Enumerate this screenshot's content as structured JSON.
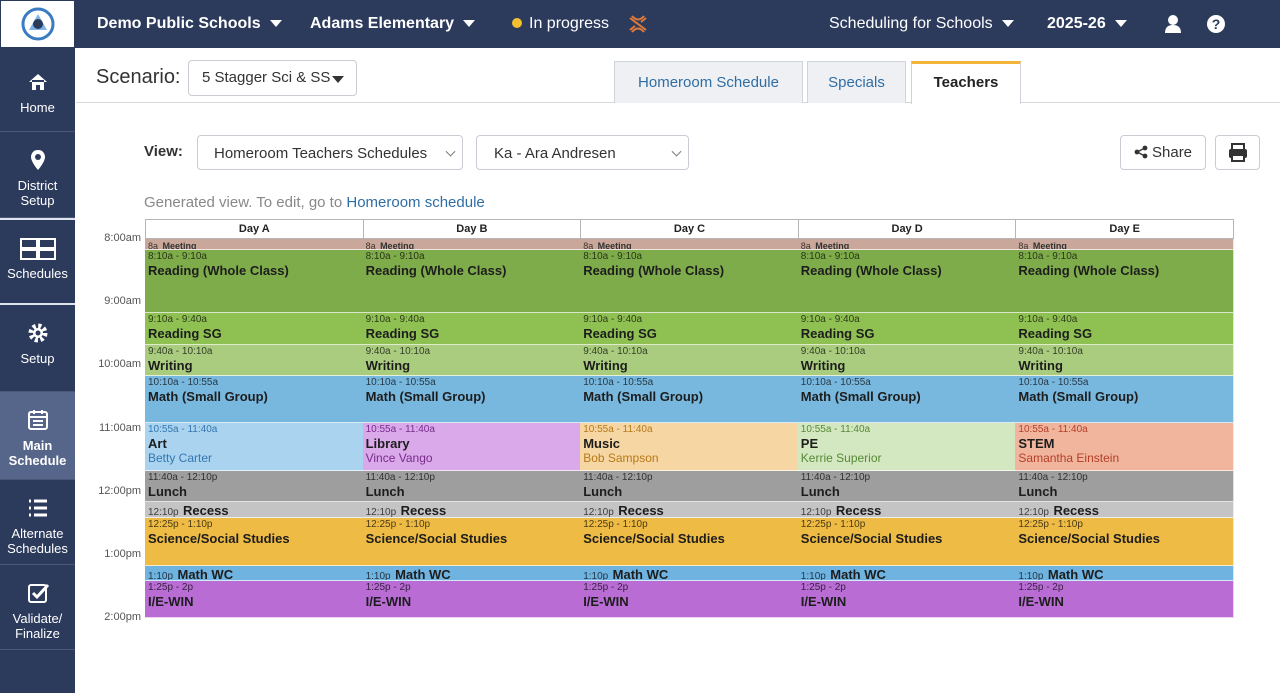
{
  "topbar": {
    "district": "Demo Public Schools",
    "school": "Adams Elementary",
    "status": "In progress",
    "product": "Scheduling for Schools",
    "year": "2025-26"
  },
  "sidebar": [
    "Home",
    "District Setup",
    "Schedules",
    "Setup",
    "Main Schedule",
    "Alternate Schedules",
    "Validate/ Finalize"
  ],
  "scenario": {
    "label": "Scenario:",
    "value": "5 Stagger Sci & SS"
  },
  "tabs": [
    "Homeroom Schedule",
    "Specials",
    "Teachers"
  ],
  "view": {
    "label": "View:",
    "type": "Homeroom Teachers Schedules",
    "teacher": "Ka - Ara Andresen",
    "share": "Share"
  },
  "notice": {
    "text": "Generated view. To edit, go to",
    "link": "Homeroom schedule"
  },
  "schedule": {
    "days": [
      "Day A",
      "Day B",
      "Day C",
      "Day D",
      "Day E"
    ],
    "times": [
      "8:00am",
      "9:00am",
      "10:00am",
      "11:00am",
      "12:00pm",
      "1:00pm",
      "2:00pm"
    ],
    "rows": [
      {
        "cells": [
          {
            "time": "8a",
            "title": "Meeting"
          },
          {
            "time": "8a",
            "title": "Meeting"
          },
          {
            "time": "8a",
            "title": "Meeting"
          },
          {
            "time": "8a",
            "title": "Meeting"
          },
          {
            "time": "8a",
            "title": "Meeting"
          }
        ]
      },
      {
        "cells": [
          {
            "time": "8:10a - 9:10a",
            "title": "Reading (Whole Class)"
          },
          {
            "time": "8:10a - 9:10a",
            "title": "Reading (Whole Class)"
          },
          {
            "time": "8:10a - 9:10a",
            "title": "Reading (Whole Class)"
          },
          {
            "time": "8:10a - 9:10a",
            "title": "Reading (Whole Class)"
          },
          {
            "time": "8:10a - 9:10a",
            "title": "Reading (Whole Class)"
          }
        ]
      },
      {
        "cells": [
          {
            "time": "9:10a - 9:40a",
            "title": "Reading SG"
          },
          {
            "time": "9:10a - 9:40a",
            "title": "Reading SG"
          },
          {
            "time": "9:10a - 9:40a",
            "title": "Reading SG"
          },
          {
            "time": "9:10a - 9:40a",
            "title": "Reading SG"
          },
          {
            "time": "9:10a - 9:40a",
            "title": "Reading SG"
          }
        ]
      },
      {
        "cells": [
          {
            "time": "9:40a - 10:10a",
            "title": "Writing"
          },
          {
            "time": "9:40a - 10:10a",
            "title": "Writing"
          },
          {
            "time": "9:40a - 10:10a",
            "title": "Writing"
          },
          {
            "time": "9:40a - 10:10a",
            "title": "Writing"
          },
          {
            "time": "9:40a - 10:10a",
            "title": "Writing"
          }
        ]
      },
      {
        "cells": [
          {
            "time": "10:10a - 10:55a",
            "title": "Math (Small Group)"
          },
          {
            "time": "10:10a - 10:55a",
            "title": "Math (Small Group)"
          },
          {
            "time": "10:10a - 10:55a",
            "title": "Math (Small Group)"
          },
          {
            "time": "10:10a - 10:55a",
            "title": "Math (Small Group)"
          },
          {
            "time": "10:10a - 10:55a",
            "title": "Math (Small Group)"
          }
        ]
      },
      {
        "cells": [
          {
            "time": "10:55a - 11:40a",
            "title": "Art",
            "teacher": "Betty Carter"
          },
          {
            "time": "10:55a - 11:40a",
            "title": "Library",
            "teacher": "Vince Vango"
          },
          {
            "time": "10:55a - 11:40a",
            "title": "Music",
            "teacher": "Bob Sampson"
          },
          {
            "time": "10:55a - 11:40a",
            "title": "PE",
            "teacher": "Kerrie Superior"
          },
          {
            "time": "10:55a - 11:40a",
            "title": "STEM",
            "teacher": "Samantha Einstein"
          }
        ]
      },
      {
        "cells": [
          {
            "time": "11:40a - 12:10p",
            "title": "Lunch"
          },
          {
            "time": "11:40a - 12:10p",
            "title": "Lunch"
          },
          {
            "time": "11:40a - 12:10p",
            "title": "Lunch"
          },
          {
            "time": "11:40a - 12:10p",
            "title": "Lunch"
          },
          {
            "time": "11:40a - 12:10p",
            "title": "Lunch"
          }
        ]
      },
      {
        "cells": [
          {
            "time": "12:10p",
            "title": "Recess"
          },
          {
            "time": "12:10p",
            "title": "Recess"
          },
          {
            "time": "12:10p",
            "title": "Recess"
          },
          {
            "time": "12:10p",
            "title": "Recess"
          },
          {
            "time": "12:10p",
            "title": "Recess"
          }
        ]
      },
      {
        "cells": [
          {
            "time": "12:25p - 1:10p",
            "title": "Science/Social Studies"
          },
          {
            "time": "12:25p - 1:10p",
            "title": "Science/Social Studies"
          },
          {
            "time": "12:25p - 1:10p",
            "title": "Science/Social Studies"
          },
          {
            "time": "12:25p - 1:10p",
            "title": "Science/Social Studies"
          },
          {
            "time": "12:25p - 1:10p",
            "title": "Science/Social Studies"
          }
        ]
      },
      {
        "cells": [
          {
            "time": "1:10p",
            "title": "Math WC"
          },
          {
            "time": "1:10p",
            "title": "Math WC"
          },
          {
            "time": "1:10p",
            "title": "Math WC"
          },
          {
            "time": "1:10p",
            "title": "Math WC"
          },
          {
            "time": "1:10p",
            "title": "Math WC"
          }
        ]
      },
      {
        "cells": [
          {
            "time": "1:25p - 2p",
            "title": "I/E-WIN"
          },
          {
            "time": "1:25p - 2p",
            "title": "I/E-WIN"
          },
          {
            "time": "1:25p - 2p",
            "title": "I/E-WIN"
          },
          {
            "time": "1:25p - 2p",
            "title": "I/E-WIN"
          },
          {
            "time": "1:25p - 2p",
            "title": "I/E-WIN"
          }
        ]
      }
    ]
  }
}
